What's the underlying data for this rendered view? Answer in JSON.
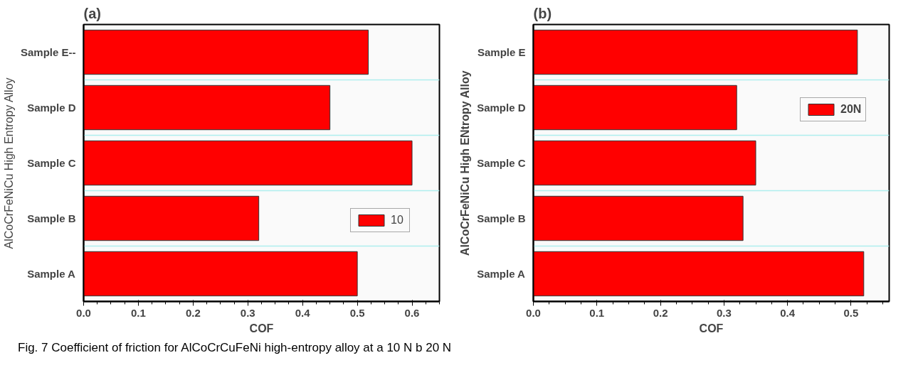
{
  "chart_data": [
    {
      "type": "bar",
      "orientation": "horizontal",
      "title": "(a)",
      "xlabel": "COF",
      "ylabel": "AlCoCrFeNiCu High Entropy Alloy",
      "categories": [
        "Sample E--",
        "Sample D",
        "Sample C",
        "Sample B",
        "Sample A"
      ],
      "series": [
        {
          "name": "10",
          "color": "#ff0000",
          "values": [
            0.52,
            0.45,
            0.6,
            0.32,
            0.5
          ]
        }
      ],
      "xlim": [
        0,
        0.65
      ],
      "xticks": [
        {
          "value": 0,
          "label": "0.0"
        },
        0.1,
        0.2,
        0.3,
        0.4,
        0.5,
        0.6
      ],
      "grid": "y",
      "legend": "right"
    },
    {
      "type": "bar",
      "orientation": "horizontal",
      "title": "(b)",
      "xlabel": "COF",
      "ylabel": "AlCoCrFeNiCu High ENtropy Alloy",
      "categories": [
        "Sample E",
        "Sample D",
        "Sample C",
        "Sample B",
        "Sample A"
      ],
      "series": [
        {
          "name": "20N",
          "color": "#ff0000",
          "values": [
            0.51,
            0.32,
            0.35,
            0.33,
            0.52
          ]
        }
      ],
      "xlim": [
        0,
        0.56
      ],
      "xticks": [
        {
          "value": 0,
          "label": "0.0"
        },
        0.1,
        0.2,
        0.3,
        0.4,
        0.5
      ],
      "grid": "y",
      "legend": "right",
      "annotations": [
        "Fig. 7 Coefficient of friction for AlCoCrCuFeNi high-entropy alloy at a 10 N b 20 N"
      ]
    }
  ]
}
